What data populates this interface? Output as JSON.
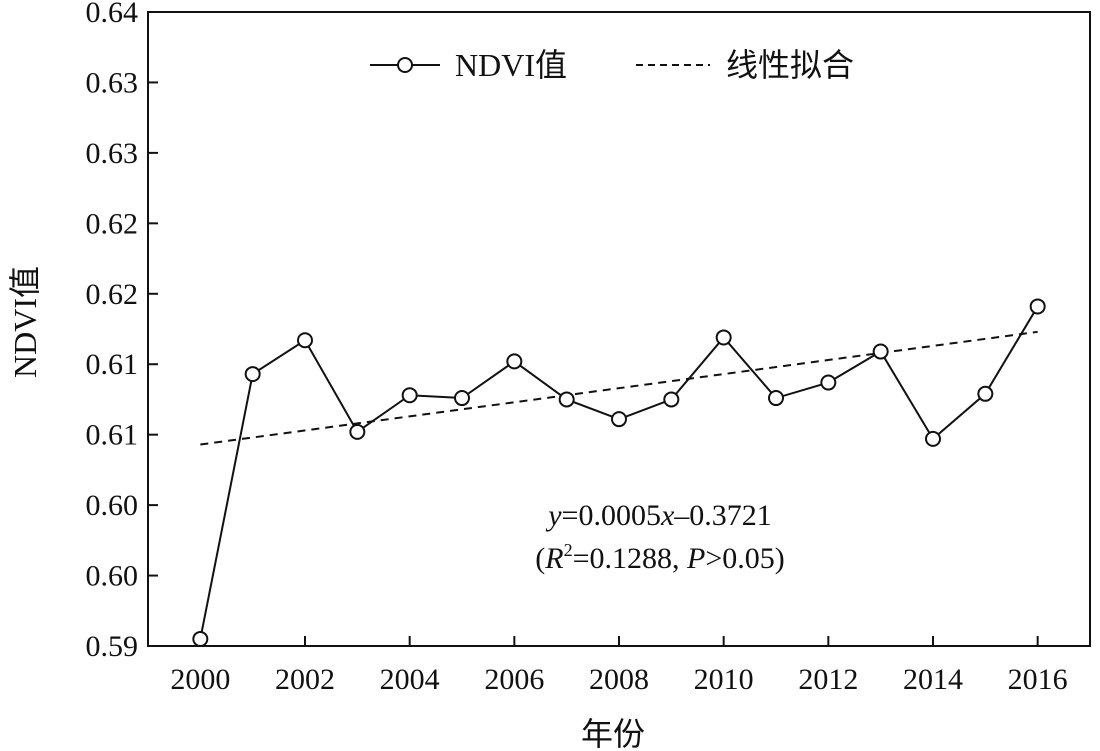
{
  "chart_data": {
    "type": "line",
    "xlabel": "年份",
    "ylabel": "NDVI值",
    "xlim": [
      1999,
      2017
    ],
    "ylim": [
      0.595,
      0.64
    ],
    "x_ticks": [
      2000,
      2002,
      2004,
      2006,
      2008,
      2010,
      2012,
      2014,
      2016
    ],
    "y_ticks": [
      0.595,
      0.6,
      0.605,
      0.61,
      0.615,
      0.62,
      0.625,
      0.63,
      0.635,
      0.64
    ],
    "y_tick_labels": [
      "0.59",
      "0.60",
      "0.60",
      "0.61",
      "0.61",
      "0.62",
      "0.62",
      "0.63",
      "0.63",
      "0.64"
    ],
    "grid": false,
    "legend_position": "top",
    "series": [
      {
        "name": "NDVI值",
        "style": "solid line with open circle markers",
        "x": [
          2000,
          2001,
          2002,
          2003,
          2004,
          2005,
          2006,
          2007,
          2008,
          2009,
          2010,
          2011,
          2012,
          2013,
          2014,
          2015,
          2016
        ],
        "values": [
          0.5955,
          0.6143,
          0.6167,
          0.6102,
          0.6128,
          0.6126,
          0.6152,
          0.6125,
          0.6111,
          0.6125,
          0.6169,
          0.6126,
          0.6137,
          0.6159,
          0.6097,
          0.6129,
          0.6191
        ]
      },
      {
        "name": "线性拟合",
        "style": "dashed line",
        "x": [
          2000,
          2016
        ],
        "values": [
          0.6093,
          0.6173
        ]
      }
    ],
    "annotation": {
      "equation_y": "y",
      "equation_rest": "=0.0005",
      "equation_x": "x",
      "equation_tail": "–0.3721",
      "stats_open": "(",
      "stats_r": "R",
      "stats_sup": "2",
      "stats_r_value": "=0.1288, ",
      "stats_p": "P",
      "stats_p_value": ">0.05)"
    },
    "colors": {
      "line": "#111111",
      "marker_fill": "#ffffff",
      "background": "#ffffff"
    }
  }
}
